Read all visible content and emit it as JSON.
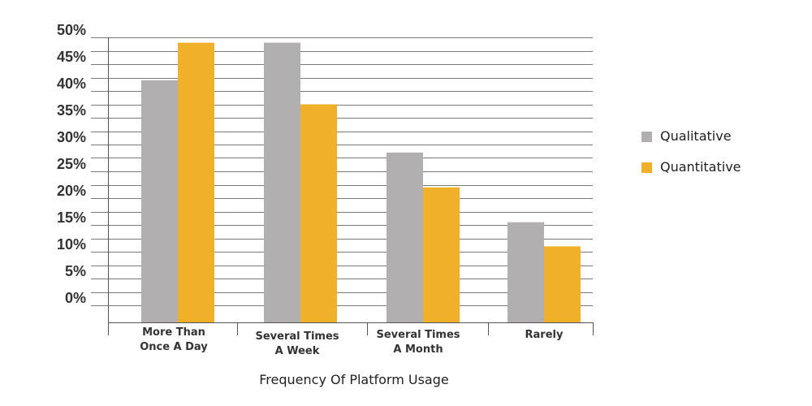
{
  "chart_data": {
    "type": "bar",
    "xlabel": "Frequency Of Platform Usage",
    "ylabel": "",
    "ylim": [
      0,
      50
    ],
    "y_ticks": [
      "0%",
      "5%",
      "10%",
      "15%",
      "20%",
      "25%",
      "30%",
      "35%",
      "40%",
      "45%",
      "50%"
    ],
    "categories": [
      [
        "More Than",
        "Once A Day"
      ],
      [
        "Several Times",
        "A Week"
      ],
      [
        "Several Times",
        "A Month"
      ],
      [
        "Rarely"
      ]
    ],
    "series": [
      {
        "name": "Qualitative",
        "color": "#b1afb0",
        "values": [
          42,
          49,
          28.5,
          15.5
        ]
      },
      {
        "name": "Quantitative",
        "color": "#f0b02a",
        "values": [
          49,
          37.5,
          22,
          11
        ]
      }
    ],
    "legend_position": "right",
    "grid": true
  }
}
